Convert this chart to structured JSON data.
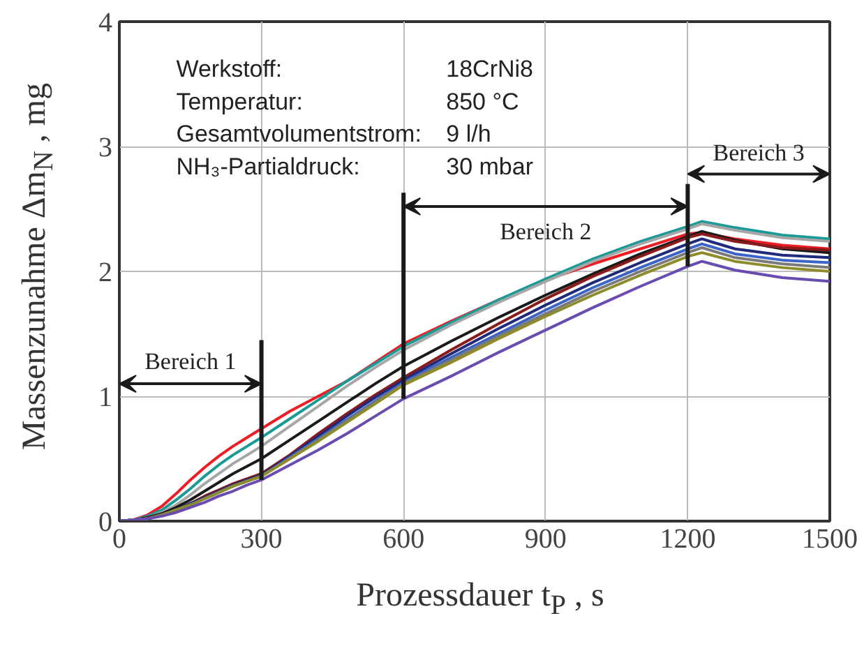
{
  "chart_data": {
    "type": "line",
    "xlabel": "Prozessdauer t$_{P}$ , s",
    "ylabel": "Massenzunahme Δm$_{N}$ , mg",
    "x": [
      0,
      30,
      60,
      90,
      120,
      150,
      180,
      210,
      240,
      270,
      300,
      360,
      420,
      480,
      540,
      600,
      700,
      800,
      900,
      1000,
      1100,
      1200,
      1230,
      1300,
      1400,
      1500
    ],
    "series": [
      {
        "color": "#ee1c25",
        "values": [
          0,
          0.01,
          0.05,
          0.12,
          0.22,
          0.33,
          0.43,
          0.52,
          0.6,
          0.67,
          0.74,
          0.88,
          1.0,
          1.12,
          1.27,
          1.42,
          1.6,
          1.77,
          1.93,
          2.06,
          2.18,
          2.3,
          2.31,
          2.26,
          2.21,
          2.18
        ]
      },
      {
        "color": "#1a9a96",
        "values": [
          0,
          0.01,
          0.04,
          0.09,
          0.17,
          0.26,
          0.36,
          0.45,
          0.53,
          0.6,
          0.67,
          0.82,
          0.97,
          1.12,
          1.26,
          1.4,
          1.59,
          1.77,
          1.94,
          2.1,
          2.24,
          2.36,
          2.4,
          2.35,
          2.29,
          2.26
        ]
      },
      {
        "color": "#a6a6a6",
        "values": [
          0,
          0.01,
          0.03,
          0.07,
          0.13,
          0.21,
          0.3,
          0.38,
          0.46,
          0.53,
          0.6,
          0.76,
          0.92,
          1.08,
          1.23,
          1.37,
          1.57,
          1.75,
          1.92,
          2.08,
          2.22,
          2.34,
          2.38,
          2.33,
          2.27,
          2.24
        ]
      },
      {
        "color": "#1a1a1a",
        "values": [
          0,
          0.01,
          0.03,
          0.06,
          0.11,
          0.17,
          0.24,
          0.31,
          0.38,
          0.44,
          0.5,
          0.65,
          0.8,
          0.95,
          1.1,
          1.24,
          1.44,
          1.63,
          1.81,
          1.98,
          2.14,
          2.28,
          2.32,
          2.25,
          2.18,
          2.15
        ]
      },
      {
        "color": "#8b1a1a",
        "values": [
          0,
          0.01,
          0.02,
          0.05,
          0.09,
          0.14,
          0.2,
          0.25,
          0.3,
          0.34,
          0.38,
          0.53,
          0.7,
          0.86,
          1.01,
          1.15,
          1.37,
          1.58,
          1.78,
          1.96,
          2.12,
          2.27,
          2.3,
          2.24,
          2.19,
          2.17
        ]
      },
      {
        "color": "#1f2a7a",
        "values": [
          0,
          0.01,
          0.02,
          0.05,
          0.09,
          0.14,
          0.19,
          0.24,
          0.29,
          0.33,
          0.37,
          0.52,
          0.68,
          0.84,
          0.99,
          1.13,
          1.34,
          1.54,
          1.73,
          1.91,
          2.07,
          2.22,
          2.26,
          2.18,
          2.13,
          2.11
        ]
      },
      {
        "color": "#3a64c8",
        "values": [
          0,
          0.01,
          0.02,
          0.05,
          0.09,
          0.13,
          0.18,
          0.23,
          0.28,
          0.32,
          0.36,
          0.51,
          0.66,
          0.81,
          0.96,
          1.11,
          1.31,
          1.5,
          1.69,
          1.87,
          2.03,
          2.18,
          2.22,
          2.14,
          2.09,
          2.07
        ]
      },
      {
        "color": "#7a7a7a",
        "values": [
          0,
          0.01,
          0.02,
          0.05,
          0.09,
          0.13,
          0.18,
          0.23,
          0.28,
          0.32,
          0.36,
          0.5,
          0.65,
          0.8,
          0.95,
          1.1,
          1.29,
          1.48,
          1.66,
          1.84,
          2.0,
          2.15,
          2.19,
          2.11,
          2.06,
          2.03
        ]
      },
      {
        "color": "#8c8c2a",
        "values": [
          0,
          0.01,
          0.02,
          0.05,
          0.09,
          0.13,
          0.18,
          0.23,
          0.28,
          0.32,
          0.36,
          0.5,
          0.64,
          0.79,
          0.94,
          1.09,
          1.27,
          1.46,
          1.64,
          1.81,
          1.97,
          2.12,
          2.15,
          2.08,
          2.03,
          2.0
        ]
      },
      {
        "color": "#6a4bb0",
        "values": [
          0,
          0.01,
          0.02,
          0.04,
          0.07,
          0.11,
          0.15,
          0.2,
          0.24,
          0.29,
          0.33,
          0.45,
          0.57,
          0.7,
          0.84,
          0.98,
          1.16,
          1.35,
          1.53,
          1.71,
          1.88,
          2.04,
          2.08,
          2.01,
          1.95,
          1.92
        ]
      }
    ],
    "xlim": [
      0,
      1500
    ],
    "xticks": [
      0,
      300,
      600,
      900,
      1200,
      1500
    ],
    "ylim": [
      0,
      4
    ],
    "yticks": [
      0,
      1,
      2,
      3,
      4
    ],
    "grid": true,
    "marker": "none",
    "line_style": "solid",
    "ref_lines": [
      {
        "axis": "x",
        "value": 300,
        "color": "#1a1a1a"
      },
      {
        "axis": "x",
        "value": 600,
        "color": "#1a1a1a"
      },
      {
        "axis": "x",
        "value": 1200,
        "color": "#1a1a1a"
      }
    ],
    "annotations": [
      "Werkstoff:",
      "18CrNi8",
      "Temperatur:",
      "850 °C",
      "Gesamtvolumentstrom:",
      "9 l/h",
      "NH₃-Partialdruck:",
      "30 mbar",
      "Bereich 1",
      "Bereich 2",
      "Bereich 3"
    ]
  }
}
